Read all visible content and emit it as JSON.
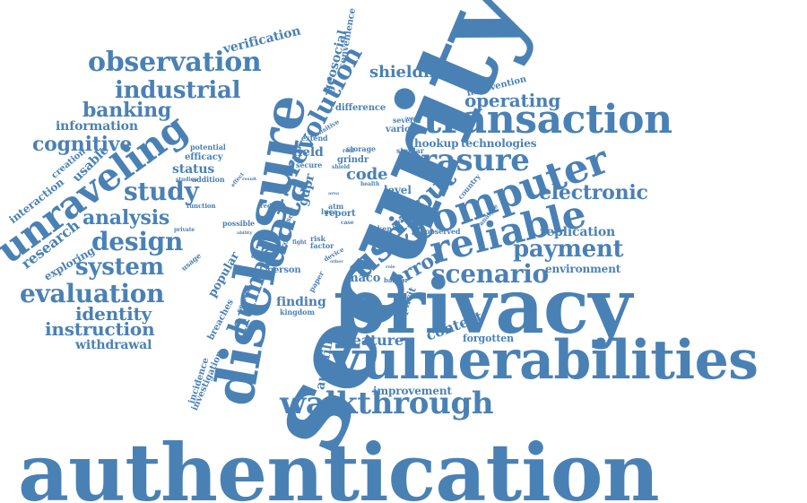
{
  "style": {
    "color": "#4a81b5",
    "background": "#ffffff"
  },
  "words": [
    "authentication",
    "security",
    "privacy",
    "vulnerabilities",
    "disclosure",
    "transaction",
    "computer",
    "reliable",
    "unraveling",
    "walkthrough",
    "user",
    "erasure",
    "data",
    "scenario",
    "observation",
    "evaluation",
    "revolution",
    "industrial",
    "design",
    "study",
    "system",
    "analysis",
    "payment",
    "electronic",
    "input",
    "cognitive",
    "banking",
    "human",
    "identity",
    "instruction",
    "shielding",
    "operating",
    "code",
    "replication",
    "error",
    "feature",
    "verification",
    "information",
    "withdrawal",
    "research",
    "context",
    "improvement",
    "environment",
    "hookup",
    "technologies",
    "finding",
    "forgotten",
    "status",
    "field",
    "gdpr",
    "popular",
    "efficacy",
    "explicit",
    "level",
    "geosocial",
    "usable",
    "interaction",
    "exploring",
    "convenience",
    "intervention",
    "difference",
    "several",
    "various",
    "creation",
    "autofill",
    "incidence",
    "investigation",
    "breaches",
    "maco",
    "barrier",
    "person",
    "kingdom",
    "paper",
    "luca",
    "factor",
    "risk",
    "atm",
    "report",
    "taken",
    "observed",
    "similar",
    "storage",
    "grindr",
    "secure",
    "shield",
    "extend",
    "sensitive",
    "addition",
    "studies",
    "function",
    "potential",
    "private",
    "usage",
    "possible",
    "cause",
    "reduce",
    "social",
    "result",
    "effect",
    "ability",
    "service",
    "self",
    "cross",
    "fight",
    "real",
    "world",
    "device",
    "other",
    "country",
    "health",
    "analyse",
    "derive",
    "case",
    "area",
    "note",
    "role",
    "used"
  ]
}
